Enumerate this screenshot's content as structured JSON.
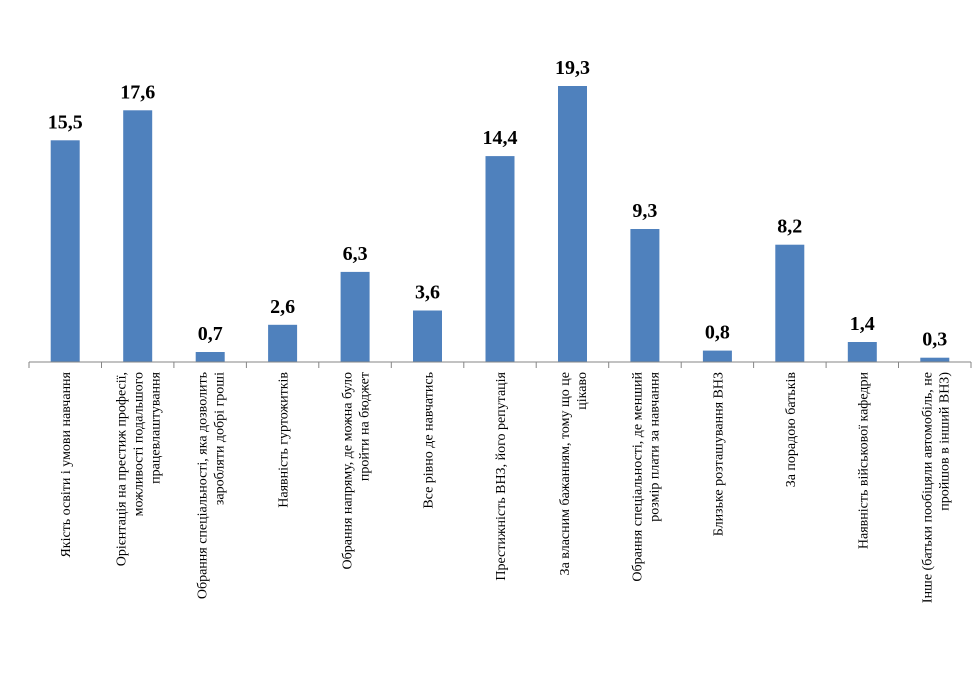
{
  "chart_data": {
    "type": "bar",
    "title": "",
    "xlabel": "",
    "ylabel": "",
    "ylim": [
      0,
      21
    ],
    "grid": false,
    "legend": "none",
    "bar_color": "#4F81BD",
    "axis_color": "#868686",
    "categories": [
      [
        "Якість освіти і умови навчання"
      ],
      [
        "Орієнтація на престиж професії,",
        "можливості подальшого",
        "працевлаштування"
      ],
      [
        "Обрання спеціальності, яка дозволить",
        "заробляти добрі гроші"
      ],
      [
        "Наявність гуртожитків"
      ],
      [
        "Обрання  напряму, де можна було",
        "пройти на бюджет"
      ],
      [
        "Все рівно де навчатись"
      ],
      [
        "Престижність ВНЗ, його репутація"
      ],
      [
        "За власним бажанням, тому що це",
        "цікаво"
      ],
      [
        "Обрання спеціальності, де менший",
        "розмір плати за навчання"
      ],
      [
        "Близьке розташування ВНЗ"
      ],
      [
        "За порадою батьків"
      ],
      [
        "Наявність військової кафедри"
      ],
      [
        "Інше (батьки пообіцяли автомобіль, не",
        "пройшов в інший ВНЗ)"
      ]
    ],
    "values": [
      15.5,
      17.6,
      0.7,
      2.6,
      6.3,
      3.6,
      14.4,
      19.3,
      9.3,
      0.8,
      8.2,
      1.4,
      0.3
    ],
    "data_labels": [
      "15,5",
      "17,6",
      "0,7",
      "2,6",
      "6,3",
      "3,6",
      "14,4",
      "19,3",
      "9,3",
      "0,8",
      "8,2",
      "1,4",
      "0,3"
    ]
  }
}
